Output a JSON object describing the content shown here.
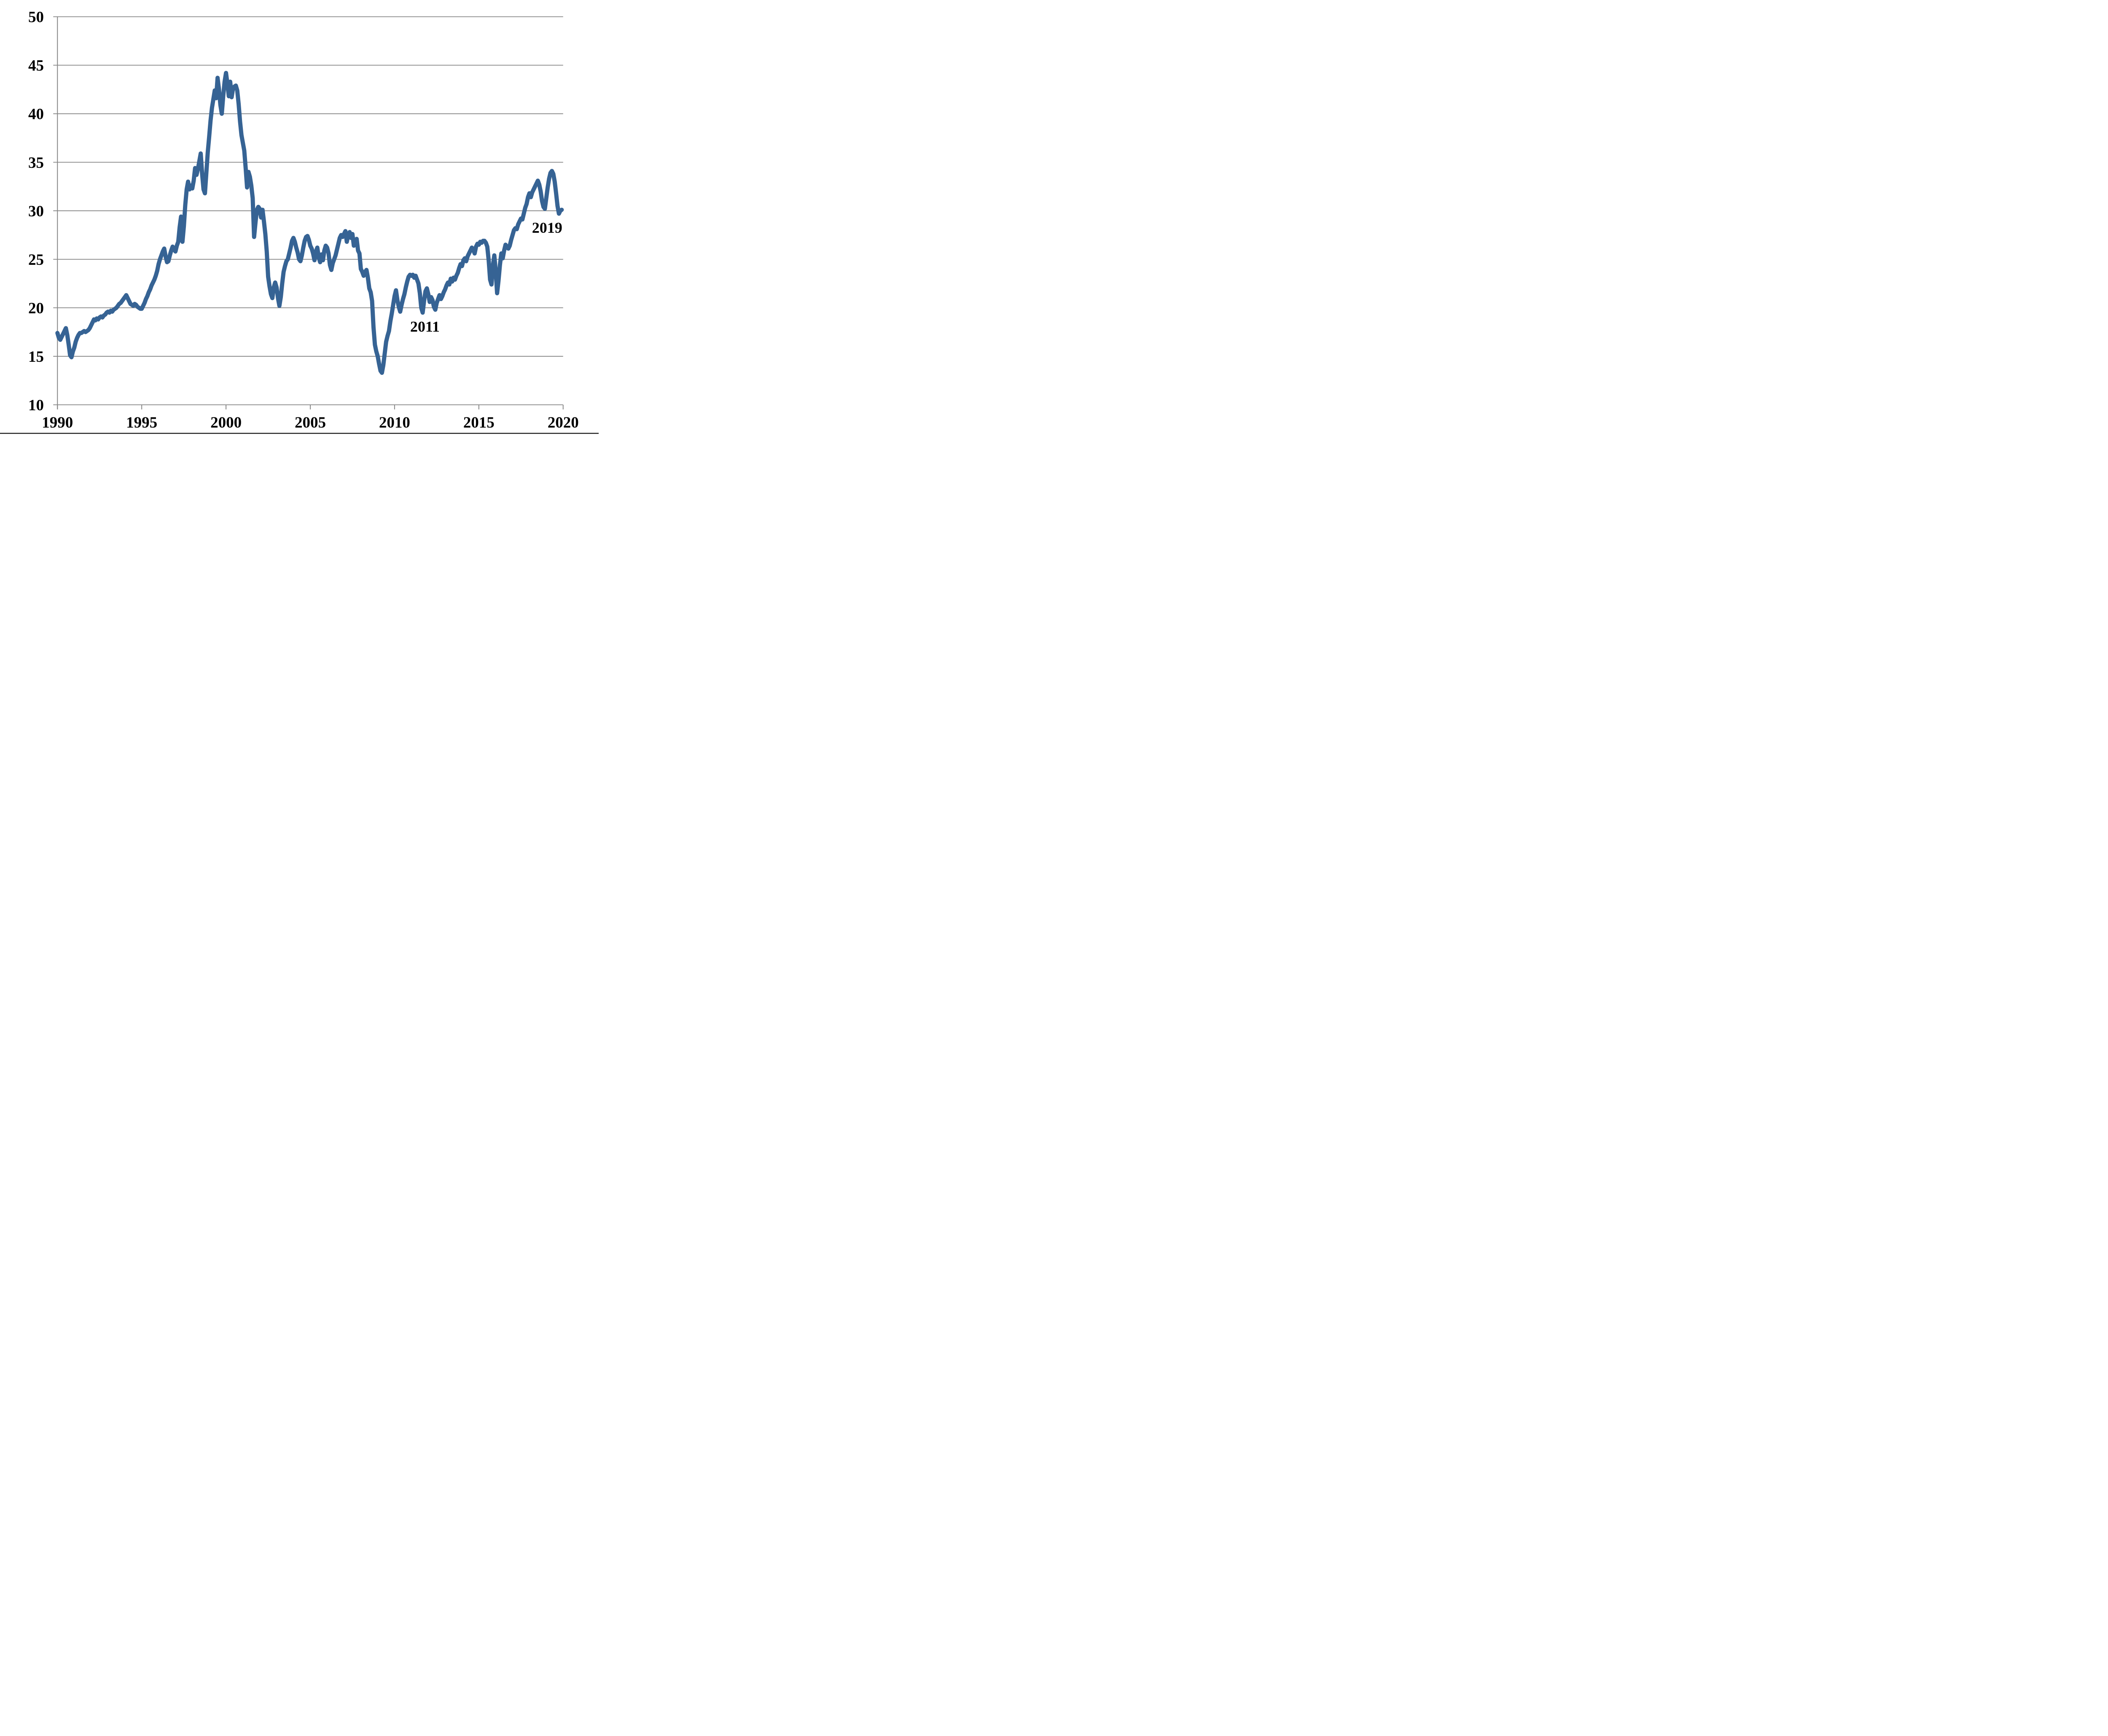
{
  "chart_data": {
    "type": "line",
    "title": "",
    "xlabel": "",
    "ylabel": "",
    "xlim": [
      1990,
      2020
    ],
    "ylim": [
      10,
      50
    ],
    "x_ticks": [
      1990,
      1995,
      2000,
      2005,
      2010,
      2015,
      2020
    ],
    "y_ticks": [
      10,
      15,
      20,
      25,
      30,
      35,
      40,
      45,
      50
    ],
    "grid": "horizontal-only",
    "legend": "none",
    "series_start_year": 1990,
    "frequency": "monthly",
    "values": [
      17.4,
      16.9,
      16.7,
      17.0,
      17.3,
      17.6,
      17.9,
      17.2,
      16.2,
      15.1,
      14.9,
      15.5,
      15.9,
      16.5,
      16.9,
      17.2,
      17.4,
      17.4,
      17.5,
      17.6,
      17.5,
      17.6,
      17.7,
      17.9,
      18.2,
      18.5,
      18.8,
      18.7,
      18.9,
      18.8,
      19.0,
      19.1,
      19.0,
      19.2,
      19.3,
      19.5,
      19.6,
      19.5,
      19.7,
      19.6,
      19.8,
      19.9,
      20.0,
      20.2,
      20.4,
      20.5,
      20.7,
      20.9,
      21.1,
      21.3,
      21.0,
      20.7,
      20.4,
      20.3,
      20.2,
      20.4,
      20.3,
      20.1,
      20.0,
      19.9,
      19.9,
      20.2,
      20.5,
      20.9,
      21.2,
      21.6,
      21.9,
      22.3,
      22.6,
      22.9,
      23.3,
      23.8,
      24.5,
      25.0,
      25.4,
      25.8,
      26.1,
      25.3,
      24.7,
      24.8,
      25.4,
      25.9,
      26.3,
      26.0,
      25.8,
      26.4,
      26.8,
      28.3,
      29.4,
      26.8,
      28.4,
      30.6,
      32.2,
      33.0,
      32.2,
      32.6,
      32.3,
      33.1,
      34.4,
      33.7,
      34.3,
      35.1,
      35.9,
      33.8,
      32.2,
      31.8,
      33.9,
      36.0,
      37.6,
      39.3,
      40.6,
      41.5,
      42.4,
      41.6,
      43.7,
      42.5,
      40.9,
      40.0,
      41.8,
      43.3,
      44.2,
      43.1,
      41.8,
      43.3,
      41.7,
      42.6,
      42.8,
      42.9,
      42.4,
      41.0,
      39.2,
      37.8,
      37.0,
      36.2,
      34.4,
      32.4,
      34.0,
      33.5,
      32.6,
      31.3,
      27.3,
      28.8,
      30.1,
      30.4,
      30.2,
      29.3,
      30.1,
      28.9,
      27.6,
      25.8,
      23.2,
      22.2,
      21.4,
      21.0,
      22.1,
      22.6,
      22.1,
      21.0,
      20.2,
      21.1,
      22.5,
      23.7,
      24.3,
      24.8,
      25.0,
      25.6,
      26.2,
      26.9,
      27.2,
      26.8,
      26.2,
      25.7,
      25.0,
      24.8,
      25.4,
      26.2,
      26.9,
      27.3,
      27.4,
      27.0,
      26.4,
      26.1,
      25.6,
      24.9,
      25.8,
      26.2,
      25.2,
      24.7,
      25.5,
      24.9,
      25.9,
      26.4,
      26.2,
      25.6,
      24.4,
      23.9,
      24.6,
      25.0,
      25.4,
      26.0,
      26.6,
      27.2,
      27.5,
      27.3,
      27.6,
      27.9,
      26.8,
      27.5,
      27.8,
      27.2,
      27.6,
      26.4,
      26.9,
      27.1,
      25.9,
      25.6,
      24.0,
      23.7,
      23.3,
      23.7,
      23.9,
      23.1,
      22.0,
      21.6,
      20.7,
      18.0,
      16.2,
      15.5,
      15.0,
      14.2,
      13.5,
      13.3,
      14.1,
      15.3,
      16.5,
      17.1,
      17.6,
      18.6,
      19.4,
      20.3,
      21.2,
      21.8,
      20.8,
      20.1,
      19.6,
      20.3,
      20.9,
      21.4,
      22.1,
      22.7,
      23.2,
      23.4,
      23.3,
      23.4,
      23.1,
      23.3,
      22.9,
      22.5,
      21.5,
      20.0,
      19.5,
      20.7,
      21.7,
      22.0,
      21.4,
      20.6,
      21.1,
      20.8,
      20.1,
      19.8,
      20.5,
      20.9,
      21.3,
      20.9,
      21.2,
      21.6,
      21.9,
      22.3,
      22.6,
      22.4,
      23.0,
      22.7,
      23.1,
      22.9,
      23.3,
      23.6,
      24.1,
      24.5,
      24.3,
      24.9,
      25.1,
      24.8,
      25.3,
      25.6,
      25.9,
      26.2,
      26.0,
      25.6,
      26.3,
      26.6,
      26.5,
      26.8,
      26.7,
      26.9,
      26.9,
      26.7,
      26.3,
      24.9,
      22.9,
      22.4,
      24.3,
      25.4,
      23.8,
      21.5,
      22.8,
      24.4,
      25.6,
      25.1,
      25.9,
      26.5,
      26.3,
      26.1,
      26.4,
      27.0,
      27.5,
      28.0,
      28.2,
      28.1,
      28.6,
      28.9,
      29.2,
      29.1,
      29.7,
      30.3,
      30.7,
      31.4,
      31.8,
      31.4,
      31.9,
      32.2,
      32.5,
      32.8,
      33.1,
      32.7,
      32.0,
      31.0,
      30.4,
      30.2,
      31.3,
      32.4,
      33.3,
      33.9,
      34.1,
      33.8,
      33.0,
      31.8,
      30.5,
      29.7,
      30.0,
      30.1
    ],
    "annotations": [
      {
        "text": "2011",
        "x": 2011.8,
        "y": 18.1
      },
      {
        "text": "2019",
        "x": 2019.05,
        "y": 28.3
      }
    ],
    "colors": {
      "line": "#366394",
      "grid": "#878787",
      "axis": "#878787",
      "label": "#000000",
      "page_bottom_border": "#262626"
    }
  }
}
